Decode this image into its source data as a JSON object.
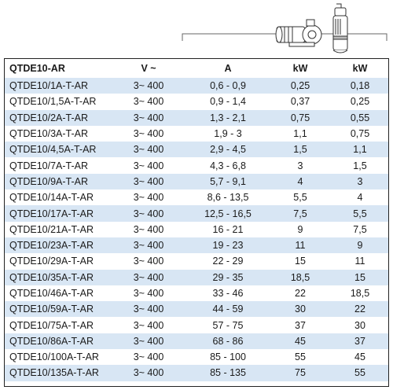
{
  "table": {
    "headers": [
      "QTDE10-AR",
      "V ~",
      "A",
      "kW",
      "kW"
    ],
    "rows": [
      [
        "QTDE10/1A-T-AR",
        "3~ 400",
        "0,6 - 0,9",
        "0,25",
        "0,18"
      ],
      [
        "QTDE10/1,5A-T-AR",
        "3~ 400",
        "0,9 - 1,4",
        "0,37",
        "0,25"
      ],
      [
        "QTDE10/2A-T-AR",
        "3~ 400",
        "1,3 - 2,1",
        "0,75",
        "0,55"
      ],
      [
        "QTDE10/3A-T-AR",
        "3~ 400",
        "1,9 - 3",
        "1,1",
        "0,75"
      ],
      [
        "QTDE10/4,5A-T-AR",
        "3~ 400",
        "2,9 - 4,5",
        "1,5",
        "1,1"
      ],
      [
        "QTDE10/7A-T-AR",
        "3~ 400",
        "4,3 - 6,8",
        "3",
        "1,5"
      ],
      [
        "QTDE10/9A-T-AR",
        "3~ 400",
        "5,7 - 9,1",
        "4",
        "3"
      ],
      [
        "QTDE10/14A-T-AR",
        "3~ 400",
        "8,6 - 13,5",
        "5,5",
        "4"
      ],
      [
        "QTDE10/17A-T-AR",
        "3~ 400",
        "12,5 - 16,5",
        "7,5",
        "5,5"
      ],
      [
        "QTDE10/21A-T-AR",
        "3~ 400",
        "16 - 21",
        "9",
        "7,5"
      ],
      [
        "QTDE10/23A-T-AR",
        "3~ 400",
        "19 - 23",
        "11",
        "9"
      ],
      [
        "QTDE10/29A-T-AR",
        "3~ 400",
        "22 - 29",
        "15",
        "11"
      ],
      [
        "QTDE10/35A-T-AR",
        "3~ 400",
        "29 - 35",
        "18,5",
        "15"
      ],
      [
        "QTDE10/46A-T-AR",
        "3~ 400",
        "33 - 46",
        "22",
        "18,5"
      ],
      [
        "QTDE10/59A-T-AR",
        "3~ 400",
        "44 - 59",
        "30",
        "22"
      ],
      [
        "QTDE10/75A-T-AR",
        "3~ 400",
        "57 - 75",
        "37",
        "30"
      ],
      [
        "QTDE10/86A-T-AR",
        "3~ 400",
        "68 - 86",
        "45",
        "37"
      ],
      [
        "QTDE10/100A-T-AR",
        "3~ 400",
        "85 - 100",
        "55",
        "45"
      ],
      [
        "QTDE10/135A-T-AR",
        "3~ 400",
        "85 - 135",
        "75",
        "55"
      ]
    ]
  },
  "icons": {
    "left": "surface-pump-icon",
    "right": "submersible-pump-icon"
  }
}
